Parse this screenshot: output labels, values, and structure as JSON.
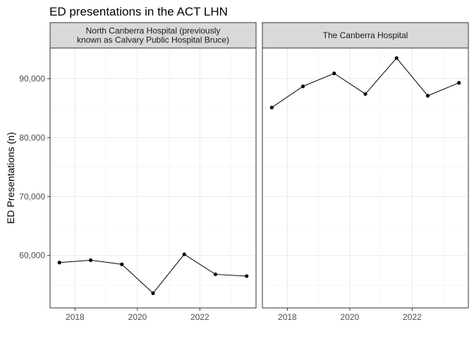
{
  "chart_data": {
    "type": "line",
    "title": "ED presentations in the ACT LHN",
    "xlabel": "",
    "ylabel": "ED Presentations (n)",
    "x_ticks": [
      2018,
      2020,
      2022
    ],
    "y_ticks": [
      60000,
      70000,
      80000,
      90000
    ],
    "y_tick_labels": [
      "60,000",
      "70,000",
      "80,000",
      "90,000"
    ],
    "xlim": [
      2017.2,
      2023.8
    ],
    "ylim": [
      51100,
      95200
    ],
    "grid": true,
    "markers": true,
    "line_color": "#000000",
    "panels": [
      {
        "strip": [
          "North Canberra Hospital (previously",
          "known as Calvary Public Hospital Bruce)"
        ],
        "x": [
          2017.5,
          2018.5,
          2019.5,
          2020.5,
          2021.5,
          2022.5,
          2023.5
        ],
        "values": [
          58800,
          59200,
          58500,
          53600,
          60200,
          56800,
          56500
        ]
      },
      {
        "strip": [
          "The Canberra Hospital"
        ],
        "x": [
          2017.5,
          2018.5,
          2019.5,
          2020.5,
          2021.5,
          2022.5,
          2023.5
        ],
        "values": [
          85100,
          88700,
          90900,
          87400,
          93500,
          87100,
          89300
        ]
      }
    ]
  }
}
